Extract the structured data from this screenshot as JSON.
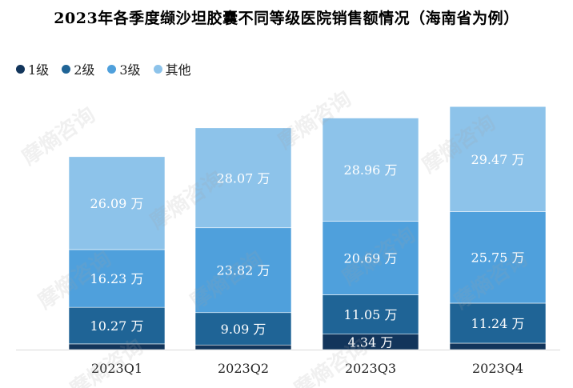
{
  "chart_data": {
    "type": "bar",
    "stacked": true,
    "title": "2023年各季度缬沙坦胶囊不同等级医院销售额情况（海南省为例）",
    "categories": [
      "2023Q1",
      "2023Q2",
      "2023Q3",
      "2023Q4"
    ],
    "unit": "万",
    "series": [
      {
        "name": "1级",
        "color": "#12355b",
        "values": [
          1.6,
          1.3,
          4.34,
          1.8
        ],
        "labels": [
          "",
          "",
          "4.34 万",
          ""
        ]
      },
      {
        "name": "2级",
        "color": "#1f6496",
        "values": [
          10.27,
          9.09,
          11.05,
          11.24
        ],
        "labels": [
          "10.27 万",
          "9.09 万",
          "11.05 万",
          "11.24 万"
        ]
      },
      {
        "name": "3级",
        "color": "#4fa0dc",
        "values": [
          16.23,
          23.82,
          20.69,
          25.75
        ],
        "labels": [
          "16.23 万",
          "23.82 万",
          "20.69 万",
          "25.75 万"
        ]
      },
      {
        "name": "其他",
        "color": "#8dc3ea",
        "values": [
          26.09,
          28.07,
          28.96,
          29.47
        ],
        "labels": [
          "26.09 万",
          "28.07 万",
          "28.96 万",
          "29.47 万"
        ]
      }
    ],
    "ylim": [
      0,
      71
    ],
    "grid": false,
    "legend_position": "top-left"
  },
  "watermark": "摩熵咨询"
}
